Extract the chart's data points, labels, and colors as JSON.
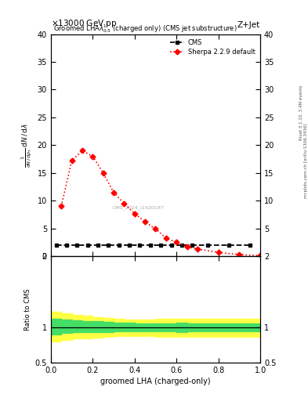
{
  "title_top": "13000 GeV pp",
  "title_right": "Z+Jet",
  "plot_title": "Groomed LHA$\\lambda^1_{0.5}$ (charged only) (CMS jet substructure)",
  "ylabel_ratio": "Ratio to CMS",
  "xlabel": "groomed LHA (charged-only)",
  "right_label": "Rivet 3.1.10, 3.4M events",
  "right_label2": "mcplots.cern.ch [arXiv:1306.3436]",
  "watermark": "CMS_2024_I1920187",
  "sherpa_x": [
    0.05,
    0.1,
    0.15,
    0.2,
    0.25,
    0.3,
    0.35,
    0.4,
    0.45,
    0.5,
    0.55,
    0.6,
    0.65,
    0.7,
    0.8,
    0.9,
    1.0
  ],
  "sherpa_y": [
    9.0,
    17.2,
    19.0,
    18.0,
    15.0,
    11.5,
    9.5,
    7.7,
    6.2,
    4.9,
    3.3,
    2.5,
    1.7,
    1.3,
    0.7,
    0.3,
    0.1
  ],
  "cms_x": [
    0.025,
    0.075,
    0.125,
    0.175,
    0.225,
    0.275,
    0.325,
    0.375,
    0.425,
    0.475,
    0.525,
    0.575,
    0.625,
    0.675,
    0.75,
    0.85,
    0.95
  ],
  "cms_y": [
    2.0,
    2.0,
    2.0,
    2.0,
    2.0,
    2.0,
    2.0,
    2.0,
    2.0,
    2.0,
    2.0,
    2.0,
    2.0,
    2.0,
    2.0,
    2.0,
    2.0
  ],
  "ratio_x": [
    0.0,
    0.05,
    0.1,
    0.15,
    0.2,
    0.25,
    0.3,
    0.35,
    0.4,
    0.45,
    0.5,
    0.55,
    0.6,
    0.65,
    0.7,
    0.75,
    0.8,
    0.85,
    0.9,
    0.95,
    1.0
  ],
  "ratio_green_upper": [
    1.12,
    1.11,
    1.1,
    1.09,
    1.09,
    1.08,
    1.07,
    1.07,
    1.06,
    1.06,
    1.06,
    1.06,
    1.07,
    1.06,
    1.06,
    1.06,
    1.06,
    1.06,
    1.06,
    1.06,
    1.06
  ],
  "ratio_green_lower": [
    0.9,
    0.92,
    0.93,
    0.93,
    0.93,
    0.93,
    0.94,
    0.94,
    0.94,
    0.94,
    0.94,
    0.94,
    0.93,
    0.94,
    0.94,
    0.94,
    0.94,
    0.94,
    0.94,
    0.94,
    0.94
  ],
  "ratio_yellow_upper": [
    1.22,
    1.2,
    1.18,
    1.16,
    1.14,
    1.13,
    1.12,
    1.11,
    1.11,
    1.11,
    1.12,
    1.12,
    1.12,
    1.12,
    1.12,
    1.12,
    1.12,
    1.12,
    1.12,
    1.12,
    1.12
  ],
  "ratio_yellow_lower": [
    0.8,
    0.82,
    0.84,
    0.85,
    0.86,
    0.87,
    0.88,
    0.88,
    0.88,
    0.88,
    0.87,
    0.87,
    0.87,
    0.87,
    0.87,
    0.87,
    0.87,
    0.87,
    0.87,
    0.87,
    0.87
  ],
  "ylim_main": [
    0,
    40
  ],
  "ylim_ratio": [
    0.5,
    2.0
  ],
  "xlim": [
    0,
    1
  ],
  "yticks_main": [
    0,
    5,
    10,
    15,
    20,
    25,
    30,
    35,
    40
  ],
  "xticks": [
    0,
    0.2,
    0.4,
    0.6,
    0.8,
    1.0
  ],
  "color_sherpa": "#ff0000",
  "color_cms": "#000000",
  "color_green": "#44dd66",
  "color_yellow": "#ffff44",
  "background": "#ffffff"
}
